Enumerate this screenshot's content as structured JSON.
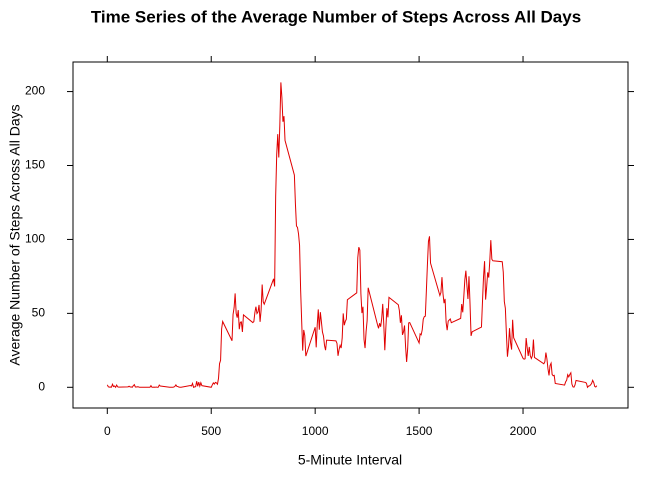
{
  "chart_data": {
    "type": "line",
    "title": "Time Series of the Average Number of Steps Across All Days",
    "xlabel": "5-Minute Interval",
    "ylabel": "Average Number of Steps Across All Days",
    "color": "#e00000",
    "xlim": [
      -165,
      2505
    ],
    "ylim": [
      -14,
      220
    ],
    "xticks": [
      0,
      500,
      1000,
      1500,
      2000
    ],
    "yticks": [
      0,
      50,
      100,
      150,
      200
    ],
    "x": [
      0,
      5,
      10,
      15,
      20,
      25,
      30,
      35,
      40,
      45,
      50,
      55,
      100,
      105,
      110,
      115,
      120,
      125,
      130,
      135,
      140,
      145,
      150,
      155,
      200,
      205,
      210,
      215,
      220,
      225,
      230,
      235,
      240,
      245,
      250,
      255,
      300,
      305,
      310,
      315,
      320,
      325,
      330,
      335,
      340,
      345,
      350,
      355,
      400,
      405,
      410,
      415,
      420,
      425,
      430,
      435,
      440,
      445,
      450,
      455,
      500,
      505,
      510,
      515,
      520,
      525,
      530,
      535,
      540,
      545,
      550,
      555,
      600,
      605,
      610,
      615,
      620,
      625,
      630,
      635,
      640,
      645,
      650,
      655,
      700,
      705,
      710,
      715,
      720,
      725,
      730,
      735,
      740,
      745,
      750,
      755,
      800,
      805,
      810,
      815,
      820,
      825,
      830,
      835,
      840,
      845,
      850,
      855,
      900,
      905,
      910,
      915,
      920,
      925,
      930,
      935,
      940,
      945,
      950,
      955,
      1000,
      1005,
      1010,
      1015,
      1020,
      1025,
      1030,
      1035,
      1040,
      1045,
      1050,
      1055,
      1100,
      1105,
      1110,
      1115,
      1120,
      1125,
      1130,
      1135,
      1140,
      1145,
      1150,
      1155,
      1200,
      1205,
      1210,
      1215,
      1220,
      1225,
      1230,
      1235,
      1240,
      1245,
      1250,
      1255,
      1300,
      1305,
      1310,
      1315,
      1320,
      1325,
      1330,
      1335,
      1340,
      1345,
      1350,
      1355,
      1400,
      1405,
      1410,
      1415,
      1420,
      1425,
      1430,
      1435,
      1440,
      1445,
      1450,
      1455,
      1500,
      1505,
      1510,
      1515,
      1520,
      1525,
      1530,
      1535,
      1540,
      1545,
      1550,
      1555,
      1600,
      1605,
      1610,
      1615,
      1620,
      1625,
      1630,
      1635,
      1640,
      1645,
      1650,
      1655,
      1700,
      1705,
      1710,
      1715,
      1720,
      1725,
      1730,
      1735,
      1740,
      1745,
      1750,
      1755,
      1800,
      1805,
      1810,
      1815,
      1820,
      1825,
      1830,
      1835,
      1840,
      1845,
      1850,
      1855,
      1900,
      1905,
      1910,
      1915,
      1920,
      1925,
      1930,
      1935,
      1940,
      1945,
      1950,
      1955,
      2000,
      2005,
      2010,
      2015,
      2020,
      2025,
      2030,
      2035,
      2040,
      2045,
      2050,
      2055,
      2100,
      2105,
      2110,
      2115,
      2120,
      2125,
      2130,
      2135,
      2140,
      2145,
      2150,
      2155,
      2200,
      2205,
      2210,
      2215,
      2220,
      2225,
      2230,
      2235,
      2240,
      2245,
      2250,
      2255,
      2300,
      2305,
      2310,
      2315,
      2320,
      2325,
      2330,
      2335,
      2340,
      2345,
      2350,
      2355
    ],
    "values": [
      1.7,
      0.3,
      0.1,
      0.2,
      0.1,
      2.1,
      0.5,
      0.9,
      0,
      1.5,
      0.3,
      0.1,
      0.3,
      0.7,
      0.2,
      0.3,
      0,
      1.1,
      1.8,
      0.2,
      0.2,
      0.4,
      0.3,
      0,
      0,
      0,
      1.1,
      0,
      0,
      0.1,
      0,
      0.2,
      0,
      0,
      1.5,
      0.9,
      0,
      0,
      0,
      0,
      0.2,
      0.6,
      1.6,
      0.6,
      0.5,
      0.1,
      0,
      0,
      1.2,
      0.9,
      2.6,
      0,
      0.3,
      0.4,
      4.1,
      0.7,
      3.5,
      0.8,
      3.1,
      1.1,
      0,
      1.6,
      3.0,
      2.2,
      3.3,
      3.0,
      2.1,
      6.1,
      16.0,
      18.3,
      39.5,
      44.5,
      31.5,
      49.3,
      53.8,
      63.5,
      50.0,
      47.1,
      52.2,
      39.3,
      44.0,
      44.2,
      37.4,
      49.0,
      43.8,
      44.4,
      50.5,
      54.5,
      49.9,
      51.0,
      55.7,
      44.3,
      52.3,
      69.5,
      57.8,
      56.2,
      73.4,
      68.2,
      129.4,
      157.5,
      171.2,
      155.4,
      177.3,
      206.2,
      195.9,
      179.6,
      183.4,
      167.0,
      143.5,
      124.0,
      109.1,
      108.1,
      103.7,
      96.0,
      66.2,
      45.2,
      24.8,
      38.8,
      35.0,
      21.1,
      40.6,
      27.0,
      42.4,
      52.7,
      38.9,
      50.8,
      44.3,
      37.4,
      34.7,
      28.3,
      25.1,
      31.9,
      31.4,
      29.7,
      21.3,
      25.5,
      28.4,
      26.5,
      33.4,
      50.0,
      42.0,
      44.6,
      46.0,
      59.2,
      63.9,
      87.7,
      94.8,
      92.8,
      63.4,
      50.2,
      54.5,
      32.4,
      26.5,
      37.7,
      45.1,
      67.3,
      42.3,
      39.9,
      43.3,
      41.0,
      46.2,
      56.4,
      42.8,
      25.1,
      40.0,
      53.5,
      47.3,
      60.8,
      55.8,
      52.0,
      43.6,
      48.7,
      35.5,
      37.5,
      41.8,
      27.5,
      17.1,
      26.1,
      43.6,
      43.8,
      30.0,
      36.1,
      35.5,
      38.8,
      46.0,
      47.8,
      48.1,
      65.3,
      82.9,
      98.7,
      102.1,
      84.0,
      62.1,
      64.1,
      74.5,
      63.2,
      56.9,
      59.8,
      43.9,
      38.6,
      44.7,
      45.5,
      46.2,
      43.7,
      46.6,
      56.3,
      50.7,
      61.2,
      72.7,
      78.9,
      68.9,
      59.7,
      75.1,
      56.5,
      34.8,
      37.5,
      40.7,
      58.0,
      74.7,
      85.3,
      59.3,
      67.8,
      77.7,
      74.2,
      85.3,
      99.5,
      86.6,
      85.6,
      84.9,
      77.8,
      58.0,
      53.4,
      36.3,
      20.7,
      27.4,
      40.0,
      30.2,
      25.5,
      45.7,
      33.5,
      19.6,
      19.0,
      19.3,
      33.3,
      26.8,
      21.2,
      27.3,
      21.3,
      19.5,
      21.3,
      32.3,
      20.2,
      15.9,
      17.2,
      23.5,
      19.2,
      12.5,
      8.0,
      14.7,
      16.3,
      8.7,
      7.8,
      8.1,
      2.6,
      1.5,
      3.7,
      4.8,
      8.5,
      7.1,
      8.7,
      9.8,
      2.2,
      0.3,
      0.1,
      1.6,
      4.6,
      3.3,
      2.8,
      0,
      0.8,
      1.0,
      1.6,
      2.6,
      4.7,
      3.3,
      0.6,
      0.2,
      1.1
    ]
  }
}
